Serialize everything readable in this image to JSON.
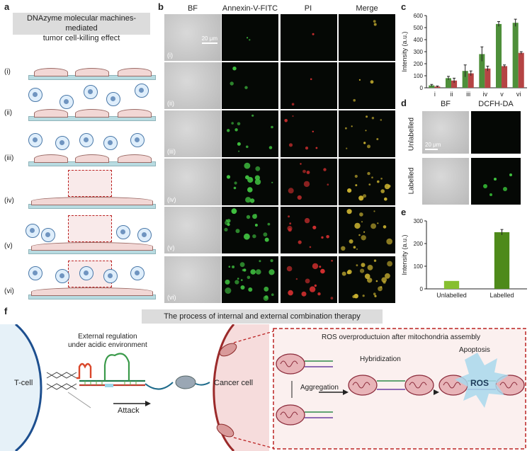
{
  "panels": {
    "a": "a",
    "b": "b",
    "c": "c",
    "d": "d",
    "e": "e",
    "f": "f"
  },
  "panel_a": {
    "title_line1": "DNAzyme molecular machines-mediated",
    "title_line2": "tumor cell-killing effect",
    "rows": [
      "(i)",
      "(ii)",
      "(iii)",
      "(iv)",
      "(v)",
      "(vi)"
    ]
  },
  "panel_b": {
    "columns": [
      "BF",
      "Annexin-V-FITC",
      "PI",
      "Merge"
    ],
    "rows": [
      "(i)",
      "(ii)",
      "(iii)",
      "(iv)",
      "(v)",
      "(vi)"
    ],
    "scale_bar": "20 μm"
  },
  "panel_d": {
    "columns": [
      "BF",
      "DCFH-DA"
    ],
    "rows": [
      "Unlabelled",
      "Labelled"
    ],
    "scale_bar": "20 μm"
  },
  "panel_f": {
    "banner": "The process of internal and external combination therapy",
    "tcell": "T-cell",
    "external_line1": "External regulation",
    "external_line2": "under acidic environment",
    "attack": "Attack",
    "cancer": "Cancer cell",
    "ros_title": "ROS overproductuion after mitochondria assembly",
    "hybridization": "Hybridization",
    "apoptosis": "Apoptosis",
    "aggregation": "Aggregation",
    "ros": "ROS"
  },
  "chart_data": [
    {
      "type": "bar",
      "panel": "c",
      "categories": [
        "i",
        "ii",
        "iii",
        "iv",
        "v",
        "vi"
      ],
      "series": [
        {
          "values": [
            20,
            80,
            140,
            280,
            530,
            540
          ],
          "errors": [
            8,
            15,
            50,
            60,
            20,
            30
          ],
          "color": "#4e8f3a"
        },
        {
          "values": [
            10,
            60,
            120,
            160,
            180,
            290
          ],
          "errors": [
            5,
            20,
            20,
            20,
            10,
            10
          ],
          "color": "#b54444"
        }
      ],
      "ylabel": "Intensity (a.u.)",
      "yticks": [
        0,
        100,
        200,
        300,
        400,
        500,
        600
      ],
      "ylim": [
        0,
        600
      ]
    },
    {
      "type": "bar",
      "panel": "e",
      "categories": [
        "Unlabelled",
        "Labelled"
      ],
      "values": [
        35,
        250
      ],
      "errors": [
        0,
        12
      ],
      "colors": [
        "#86bf2f",
        "#4e8a1a"
      ],
      "ylabel": "Intensity (a.u.)",
      "yticks": [
        0,
        100,
        200,
        300
      ],
      "ylim": [
        0,
        300
      ]
    }
  ]
}
